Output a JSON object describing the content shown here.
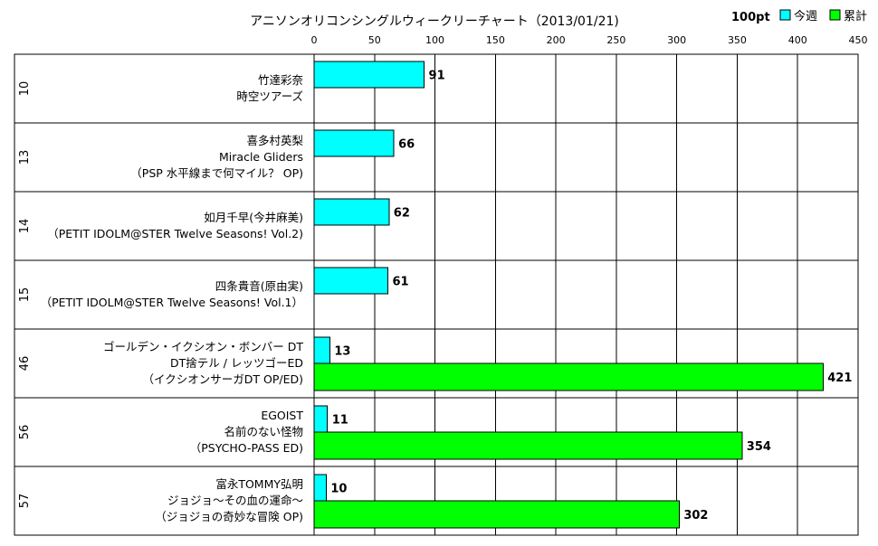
{
  "chart_data": {
    "type": "bar",
    "orientation": "horizontal",
    "title": "アニソンオリコンシングルウィークリーチャート（2013/01/21)",
    "scale_note": "100pt",
    "xlim": [
      0,
      450
    ],
    "x_ticks": [
      0,
      50,
      100,
      150,
      200,
      250,
      300,
      350,
      400,
      450
    ],
    "grid": true,
    "legend_position": "top-right",
    "legend": [
      {
        "name": "今週",
        "color": "#00ffff"
      },
      {
        "name": "累計",
        "color": "#00ff00"
      }
    ],
    "colors": {
      "weekly": "#00ffff",
      "cumulative": "#00ff00",
      "grid": "#000000",
      "border": "#000000"
    },
    "rows": [
      {
        "rank": "10",
        "labels": [
          "竹達彩奈",
          "時空ツアーズ"
        ],
        "weekly": 91,
        "cumulative": null
      },
      {
        "rank": "13",
        "labels": [
          "喜多村英梨",
          "Miracle Gliders",
          "（PSP 水平線まで何マイル？ OP)"
        ],
        "weekly": 66,
        "cumulative": null
      },
      {
        "rank": "14",
        "labels": [
          "如月千早(今井麻美)",
          "（PETIT IDOLM@STER Twelve Seasons! Vol.2)"
        ],
        "weekly": 62,
        "cumulative": null
      },
      {
        "rank": "15",
        "labels": [
          "四条貴音(原由実)",
          "（PETIT IDOLM@STER Twelve Seasons! Vol.1）"
        ],
        "weekly": 61,
        "cumulative": null
      },
      {
        "rank": "46",
        "labels": [
          "ゴールデン・イクシオン・ボンバー DT",
          "DT捨テル / レッツゴーED",
          "（イクシオンサーガDT OP/ED)"
        ],
        "weekly": 13,
        "cumulative": 421
      },
      {
        "rank": "56",
        "labels": [
          "EGOIST",
          "名前のない怪物",
          "（PSYCHO-PASS ED)"
        ],
        "weekly": 11,
        "cumulative": 354
      },
      {
        "rank": "57",
        "labels": [
          "富永TOMMY弘明",
          "ジョジョ〜その血の運命〜",
          "（ジョジョの奇妙な冒険 OP)"
        ],
        "weekly": 10,
        "cumulative": 302
      }
    ]
  }
}
